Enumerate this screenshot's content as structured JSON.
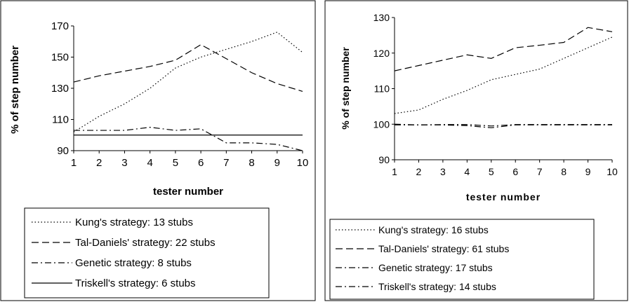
{
  "chart_data": [
    {
      "type": "line",
      "title": "",
      "xlabel": "tester number",
      "ylabel": "% of step number",
      "x": [
        1,
        2,
        3,
        4,
        5,
        6,
        7,
        8,
        9,
        10
      ],
      "xlim": [
        1,
        10
      ],
      "ylim": [
        90,
        170
      ],
      "yticks": [
        90,
        110,
        130,
        150,
        170
      ],
      "grid": false,
      "legend_position": "bottom",
      "series": [
        {
          "name": "Kung's strategy: 13 stubs",
          "style": "dotted",
          "values": [
            102,
            112,
            120,
            130,
            143,
            150,
            155,
            160,
            166,
            153
          ]
        },
        {
          "name": "Tal-Daniels' strategy: 22 stubs",
          "style": "dashed",
          "values": [
            134,
            138,
            141,
            144,
            148,
            158,
            149,
            140,
            133,
            128
          ]
        },
        {
          "name": "Genetic strategy: 8 stubs",
          "style": "dash-dot",
          "values": [
            103,
            103,
            103,
            105,
            103,
            104,
            95,
            95,
            94,
            90
          ]
        },
        {
          "name": "Triskell's strategy: 6 stubs",
          "style": "solid",
          "values": [
            100,
            100,
            100,
            100,
            100,
            100,
            100,
            100,
            100,
            100
          ]
        }
      ]
    },
    {
      "type": "line",
      "title": "",
      "xlabel": "tester number",
      "ylabel": "% of step number",
      "x": [
        1,
        2,
        3,
        4,
        5,
        6,
        7,
        8,
        9,
        10
      ],
      "xlim": [
        1,
        10
      ],
      "ylim": [
        90,
        130
      ],
      "yticks": [
        90,
        100,
        110,
        120,
        130
      ],
      "grid": false,
      "legend_position": "bottom",
      "series": [
        {
          "name": "Kung's strategy: 16 stubs",
          "style": "dotted",
          "values": [
            103,
            104,
            107,
            109.5,
            112.5,
            114,
            115.5,
            118.5,
            121.5,
            124.5
          ]
        },
        {
          "name": "Tal-Daniels' strategy: 61 stubs",
          "style": "dashed",
          "values": [
            115,
            116.5,
            118,
            119.5,
            118.5,
            121.5,
            122.2,
            123,
            127.2,
            126
          ]
        },
        {
          "name": "Genetic strategy: 17 stubs",
          "style": "dash-dot",
          "values": [
            99.8,
            99.8,
            99.8,
            99.6,
            99,
            99.8,
            99.8,
            99.8,
            99.8,
            99.8
          ]
        },
        {
          "name": "Triskell's strategy: 14 stubs",
          "style": "dash-dot",
          "values": [
            100,
            99.8,
            99.9,
            99.9,
            99.5,
            99.9,
            99.9,
            99.9,
            99.9,
            99.9
          ]
        }
      ]
    }
  ]
}
